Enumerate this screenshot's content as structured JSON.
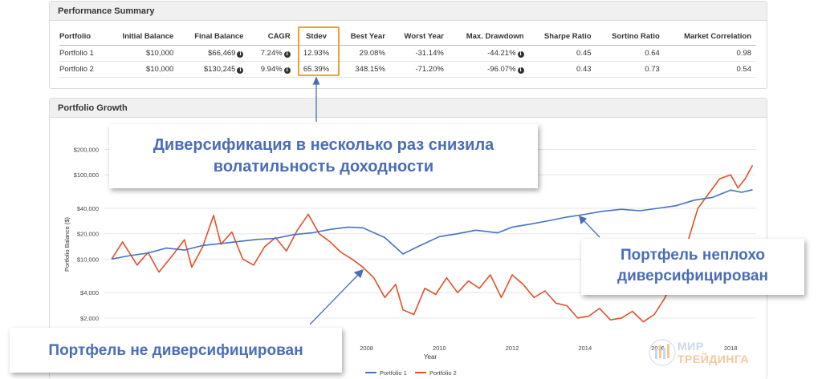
{
  "summary": {
    "title": "Performance Summary",
    "columns": [
      "Portfolio",
      "Initial Balance",
      "Final Balance",
      "CAGR",
      "Stdev",
      "Best Year",
      "Worst Year",
      "Max. Drawdown",
      "Sharpe Ratio",
      "Sortino Ratio",
      "Market Correlation"
    ],
    "rows": [
      [
        "Portfolio 1",
        "$10,000",
        "$66,469",
        "7.24%",
        "12.93%",
        "29.08%",
        "-31.14%",
        "-44.21%",
        "0.45",
        "0.64",
        "0.98"
      ],
      [
        "Portfolio 2",
        "$10,000",
        "$130,245",
        "9.94%",
        "65.39%",
        "348.15%",
        "-71.20%",
        "-96.07%",
        "0.43",
        "0.73",
        "0.54"
      ]
    ]
  },
  "growth": {
    "title": "Portfolio Growth"
  },
  "callouts": {
    "top_line1": "Диверсификация в несколько раз снизила",
    "top_line2": "волатильность доходности",
    "right_line1": "Портфель неплохо",
    "right_line2": "диверсифицирован",
    "left": "Портфель не диверсифицирован"
  },
  "logo": {
    "line1": "МИР",
    "line2": "ТРЕЙДИНГА"
  },
  "colors": {
    "portfolio1": "#4472c4",
    "portfolio2": "#e0502a",
    "highlight": "#f0a030",
    "callout_text": "#4a6db8"
  },
  "chart_data": {
    "type": "line",
    "ylabel": "Portfolio Balance ($)",
    "xlabel": "Year",
    "yscale": "log",
    "ylim": [
      1500,
      300000
    ],
    "xlim": [
      2000.8,
      2018.7
    ],
    "yticks": [
      2000,
      4000,
      10000,
      20000,
      40000,
      100000,
      200000
    ],
    "ytick_labels": [
      "$2,000",
      "$4,000",
      "$10,000",
      "$20,000",
      "$40,000",
      "$100,000",
      "$200,000"
    ],
    "xticks": [
      2008,
      2010,
      2012,
      2014,
      2016,
      2018
    ],
    "xtick_labels": [
      "2008",
      "2010",
      "2012",
      "2014",
      "2016",
      "2018"
    ],
    "legend_position": "bottom-center",
    "series": [
      {
        "name": "Portfolio 1",
        "color": "#4472c4",
        "x": [
          2001.0,
          2001.5,
          2002.0,
          2002.5,
          2003.0,
          2003.5,
          2004.0,
          2004.5,
          2005.0,
          2005.5,
          2006.0,
          2006.5,
          2007.0,
          2007.5,
          2007.9,
          2008.5,
          2009.0,
          2009.4,
          2010.0,
          2010.5,
          2011.0,
          2011.6,
          2012.0,
          2012.5,
          2013.0,
          2013.5,
          2014.0,
          2014.5,
          2015.0,
          2015.5,
          2016.0,
          2016.5,
          2017.0,
          2017.5,
          2018.0,
          2018.3,
          2018.6
        ],
        "y": [
          10000,
          11000,
          11800,
          13500,
          12800,
          14500,
          15300,
          16200,
          17100,
          17600,
          19500,
          20500,
          22500,
          24000,
          23500,
          18000,
          11500,
          14000,
          18500,
          20000,
          22000,
          20500,
          24000,
          26000,
          28500,
          31500,
          34000,
          37000,
          39000,
          37500,
          40000,
          43000,
          50000,
          54000,
          66000,
          62000,
          66469
        ]
      },
      {
        "name": "Portfolio 2",
        "color": "#e0502a",
        "x": [
          2001.0,
          2001.3,
          2001.7,
          2002.0,
          2002.3,
          2002.7,
          2003.0,
          2003.2,
          2003.5,
          2003.8,
          2004.0,
          2004.3,
          2004.6,
          2004.9,
          2005.2,
          2005.5,
          2005.8,
          2006.1,
          2006.4,
          2006.7,
          2007.0,
          2007.3,
          2007.6,
          2007.9,
          2008.2,
          2008.5,
          2008.8,
          2009.0,
          2009.3,
          2009.6,
          2009.9,
          2010.2,
          2010.5,
          2010.8,
          2011.1,
          2011.4,
          2011.7,
          2012.0,
          2012.3,
          2012.6,
          2012.9,
          2013.2,
          2013.5,
          2013.8,
          2014.1,
          2014.4,
          2014.7,
          2015.0,
          2015.3,
          2015.6,
          2015.9,
          2016.2,
          2016.5,
          2016.8,
          2017.1,
          2017.4,
          2017.7,
          2018.0,
          2018.2,
          2018.4,
          2018.6
        ],
        "y": [
          10000,
          16000,
          8500,
          12000,
          7000,
          11500,
          17000,
          8000,
          14000,
          33000,
          15000,
          21000,
          10000,
          8500,
          14000,
          18000,
          12500,
          22000,
          34000,
          20000,
          16000,
          12000,
          10000,
          8000,
          6000,
          3500,
          5000,
          2500,
          2200,
          4500,
          3800,
          6000,
          4000,
          5500,
          4500,
          6500,
          3500,
          6500,
          5000,
          3500,
          4200,
          3000,
          2800,
          2000,
          2100,
          2600,
          1900,
          2000,
          2400,
          1800,
          2200,
          3500,
          7000,
          15000,
          40000,
          60000,
          90000,
          100000,
          70000,
          90000,
          130245
        ]
      }
    ]
  }
}
